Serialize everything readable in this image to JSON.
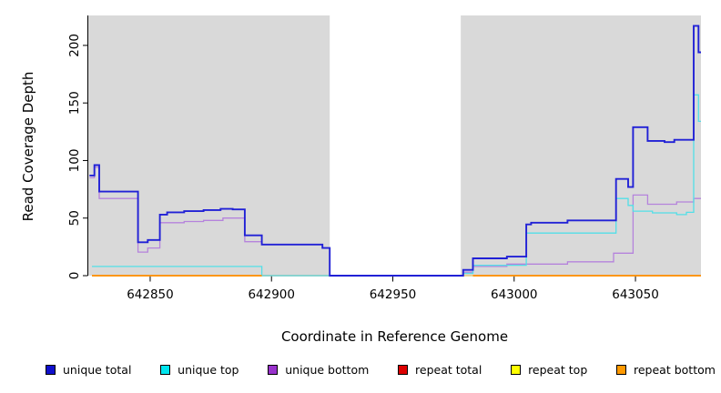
{
  "chart_data": {
    "type": "line",
    "title": "",
    "xlabel": "Coordinate in Reference Genome",
    "ylabel": "Read Coverage Depth",
    "xlim": [
      642824.5,
      643077
    ],
    "ylim": [
      0,
      226
    ],
    "x_ticks": [
      642850,
      642900,
      642950,
      643000,
      643050
    ],
    "x_tick_labels": [
      "642850",
      "642900",
      "642950",
      "643000",
      "643050"
    ],
    "y_ticks": [
      0,
      50,
      100,
      150,
      200
    ],
    "y_tick_labels": [
      "0",
      "50",
      "100",
      "150",
      "200"
    ],
    "grid": false,
    "legend_position": "bottom",
    "plot_bg": "#d9d9d9",
    "gap_region": {
      "x0": 642924,
      "x1": 642978,
      "color": "#ffffff"
    },
    "series": [
      {
        "name": "repeat total",
        "color": "#dd0000",
        "width": 1.2,
        "segments": [
          [
            [
              642826,
              0
            ],
            [
              643077,
              0
            ]
          ]
        ]
      },
      {
        "name": "repeat top",
        "color": "#e3e98b",
        "width": 1.2,
        "segments": [
          [
            [
              642826,
              0
            ],
            [
              643077,
              0
            ]
          ]
        ]
      },
      {
        "name": "unique bottom",
        "color": "#b583dc",
        "width": 1.3,
        "segments": [
          [
            [
              642825,
              85
            ],
            [
              642827,
              94
            ],
            [
              642829,
              67
            ],
            [
              642845,
              20.5
            ],
            [
              642849,
              24
            ],
            [
              642854,
              46
            ],
            [
              642864,
              47
            ],
            [
              642872,
              48
            ],
            [
              642880,
              50
            ],
            [
              642889,
              29.5
            ],
            [
              642896,
              27
            ],
            [
              642921,
              24
            ],
            [
              642924,
              0
            ],
            [
              642979,
              3
            ],
            [
              642983,
              8
            ],
            [
              642997,
              10
            ],
            [
              643022,
              12
            ],
            [
              643041,
              19.5
            ],
            [
              643049,
              70
            ],
            [
              643055,
              62
            ],
            [
              643067,
              64
            ],
            [
              643074,
              67
            ],
            [
              643077,
              67
            ]
          ]
        ]
      },
      {
        "name": "unique top",
        "color": "#52dfe8",
        "width": 1.3,
        "segments": [
          [
            [
              642826,
              8
            ],
            [
              642896,
              0
            ],
            [
              642979,
              2
            ],
            [
              642983,
              9
            ],
            [
              643005,
              37
            ],
            [
              643042,
              67
            ],
            [
              643047,
              61
            ],
            [
              643049,
              56
            ],
            [
              643057,
              54.5
            ],
            [
              643067,
              53
            ],
            [
              643071,
              55
            ],
            [
              643074,
              157
            ],
            [
              643076,
              134
            ],
            [
              643077,
              134
            ]
          ]
        ]
      },
      {
        "name": "unique total",
        "color": "#2121d6",
        "width": 1.9,
        "segments": [
          [
            [
              642825,
              87
            ],
            [
              642827,
              96
            ],
            [
              642829,
              73
            ],
            [
              642845,
              29
            ],
            [
              642849,
              31
            ],
            [
              642854,
              53
            ],
            [
              642857,
              55
            ],
            [
              642864,
              56
            ],
            [
              642872,
              57
            ],
            [
              642879,
              58
            ],
            [
              642884,
              57.5
            ],
            [
              642889,
              35
            ],
            [
              642896,
              27
            ],
            [
              642921,
              24
            ],
            [
              642924,
              0
            ],
            [
              642979,
              5
            ],
            [
              642983,
              15
            ],
            [
              642997,
              16.5
            ],
            [
              643005,
              44.5
            ],
            [
              643007,
              46
            ],
            [
              643022,
              48
            ],
            [
              643042,
              84
            ],
            [
              643047,
              77
            ],
            [
              643049,
              129
            ],
            [
              643055,
              117
            ],
            [
              643062,
              116
            ],
            [
              643066,
              118
            ],
            [
              643074,
              217
            ],
            [
              643076,
              194
            ],
            [
              643077,
              194
            ]
          ]
        ]
      },
      {
        "name": "repeat bottom",
        "color": "#ff9100",
        "width": 1.8,
        "segments": [
          [
            [
              642826,
              0
            ],
            [
              642896,
              0
            ]
          ],
          [
            [
              642983,
              0
            ],
            [
              643077,
              0
            ]
          ]
        ]
      }
    ]
  },
  "legend": {
    "items": [
      {
        "label": "unique total",
        "color": "#1010cc"
      },
      {
        "label": "unique top",
        "color": "#00e5ee"
      },
      {
        "label": "unique bottom",
        "color": "#9932cc"
      },
      {
        "label": "repeat total",
        "color": "#dd0000"
      },
      {
        "label": "repeat top",
        "color": "#ffff00"
      },
      {
        "label": "repeat bottom",
        "color": "#ff9900"
      }
    ]
  },
  "axes": {
    "x_label": "Coordinate in Reference Genome",
    "y_label": "Read Coverage Depth"
  }
}
